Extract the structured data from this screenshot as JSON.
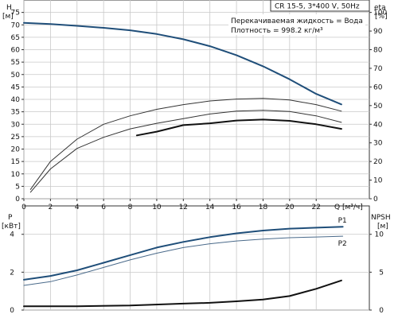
{
  "header": {
    "model": "CR 15-5, 3*400 V, 50Hz",
    "liquid_line": "Перекачиваемая жидкость = Вода",
    "density_line": "Плотность = 998.2 кг/м³"
  },
  "chart_data": [
    {
      "type": "line",
      "panel": "top",
      "x_label": "Q [м³/ч]",
      "left_axis": {
        "label_lines": [
          "H",
          "[м]"
        ],
        "ticks": [
          0,
          5,
          10,
          15,
          20,
          25,
          30,
          35,
          40,
          45,
          50,
          55,
          60,
          65,
          70,
          75
        ],
        "range": [
          0,
          80
        ]
      },
      "right_axis": {
        "label_lines": [
          "eta",
          "[%]"
        ],
        "ticks": [
          0,
          10,
          20,
          30,
          40,
          50,
          60,
          70,
          80,
          90,
          100
        ],
        "range": [
          0,
          106.67
        ]
      },
      "x_ticks": [
        0,
        2,
        4,
        6,
        8,
        10,
        12,
        14,
        16,
        18,
        20,
        22
      ],
      "x_range": [
        0,
        26
      ],
      "grid": true,
      "series": [
        {
          "axis": "left",
          "color": "#1f4e79",
          "x": [
            0,
            2,
            4,
            6,
            8,
            10,
            12,
            14,
            16,
            18,
            20,
            22,
            23.9
          ],
          "values": [
            70.8,
            70.3,
            69.6,
            68.8,
            67.8,
            66.3,
            64.2,
            61.4,
            57.8,
            53.3,
            48.1,
            42.2,
            38.0
          ]
        },
        {
          "axis": "right",
          "color": "#333333",
          "x": [
            0.5,
            2,
            4,
            6,
            8,
            10,
            12,
            14,
            16,
            18,
            20,
            22,
            23.9
          ],
          "values": [
            5,
            20,
            32,
            40,
            44.5,
            48,
            50.5,
            52.5,
            53.5,
            53.9,
            53,
            50.5,
            47
          ]
        },
        {
          "axis": "right",
          "color": "#111111",
          "x": [
            8.5,
            10,
            12,
            14,
            16,
            18,
            20,
            22,
            23.9
          ],
          "values": [
            34,
            36,
            39.5,
            40.5,
            42,
            42.5,
            41.8,
            40,
            37.5
          ]
        },
        {
          "axis": "right",
          "color": "#333333",
          "x": [
            0.5,
            2,
            4,
            6,
            8,
            10,
            12,
            14,
            16,
            18,
            20,
            22,
            23.9
          ],
          "values": [
            3.5,
            16,
            27,
            33,
            37.5,
            40.5,
            43,
            45.5,
            47,
            47.5,
            46.8,
            44.5,
            41
          ]
        }
      ]
    },
    {
      "type": "line",
      "panel": "bottom",
      "left_axis": {
        "label_lines": [
          "P",
          "[кВт]"
        ],
        "ticks": [
          0,
          2,
          4
        ],
        "range": [
          0,
          5.5
        ]
      },
      "right_axis": {
        "label_lines": [
          "NPSH",
          "[м]"
        ],
        "ticks": [
          0,
          5,
          10
        ],
        "range": [
          0,
          13.75
        ]
      },
      "x_range": [
        0,
        26
      ],
      "grid": true,
      "series": [
        {
          "name": "P1",
          "axis": "left",
          "color": "#1f4e79",
          "x": [
            0,
            2,
            4,
            6,
            8,
            10,
            12,
            14,
            16,
            18,
            20,
            22,
            24
          ],
          "values": [
            1.6,
            1.8,
            2.1,
            2.5,
            2.9,
            3.3,
            3.6,
            3.85,
            4.05,
            4.2,
            4.3,
            4.35,
            4.4
          ]
        },
        {
          "name": "P2",
          "axis": "left",
          "color": "#4a6a8a",
          "x": [
            0,
            2,
            4,
            6,
            8,
            10,
            12,
            14,
            16,
            18,
            20,
            22,
            24
          ],
          "values": [
            1.3,
            1.5,
            1.85,
            2.25,
            2.65,
            3.0,
            3.3,
            3.5,
            3.65,
            3.75,
            3.82,
            3.86,
            3.9
          ]
        },
        {
          "axis": "right",
          "color": "#111111",
          "x": [
            0,
            4,
            8,
            12,
            14,
            16,
            18,
            20,
            22,
            23.9
          ],
          "values": [
            0.5,
            0.5,
            0.6,
            0.85,
            0.95,
            1.15,
            1.4,
            1.85,
            2.8,
            3.9
          ]
        }
      ]
    }
  ]
}
